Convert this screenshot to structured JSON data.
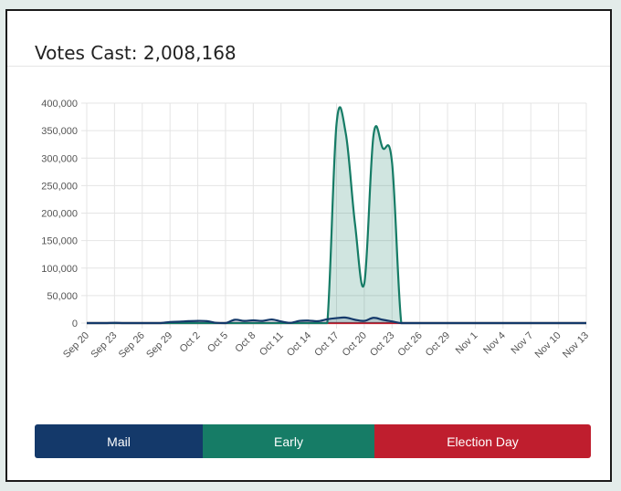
{
  "title": "Votes Cast: 2,008,168",
  "legend": [
    {
      "label": "Mail",
      "color": "#14396a"
    },
    {
      "label": "Early",
      "color": "#167c66"
    },
    {
      "label": "Election Day",
      "color": "#bf1e2e"
    }
  ],
  "chart_data": {
    "type": "area",
    "title": "Votes Cast: 2,008,168",
    "xlabel": "",
    "ylabel": "",
    "ylim": [
      0,
      400000
    ],
    "yticks": [
      0,
      50000,
      100000,
      150000,
      200000,
      250000,
      300000,
      350000,
      400000
    ],
    "ytick_labels": [
      "0",
      "50,000",
      "100,000",
      "150,000",
      "200,000",
      "250,000",
      "300,000",
      "350,000",
      "400,000"
    ],
    "x": [
      "Sep 20",
      "Sep 21",
      "Sep 22",
      "Sep 23",
      "Sep 24",
      "Sep 25",
      "Sep 26",
      "Sep 27",
      "Sep 28",
      "Sep 29",
      "Sep 30",
      "Oct 1",
      "Oct 2",
      "Oct 3",
      "Oct 4",
      "Oct 5",
      "Oct 6",
      "Oct 7",
      "Oct 8",
      "Oct 9",
      "Oct 10",
      "Oct 11",
      "Oct 12",
      "Oct 13",
      "Oct 14",
      "Oct 15",
      "Oct 16",
      "Oct 17",
      "Oct 18",
      "Oct 19",
      "Oct 20",
      "Oct 21",
      "Oct 22",
      "Oct 23",
      "Oct 24",
      "Oct 25",
      "Oct 26",
      "Oct 27",
      "Oct 28",
      "Oct 29",
      "Oct 30",
      "Oct 31",
      "Nov 1",
      "Nov 2",
      "Nov 3",
      "Nov 4",
      "Nov 5",
      "Nov 6",
      "Nov 7",
      "Nov 8",
      "Nov 9",
      "Nov 10",
      "Nov 11",
      "Nov 12",
      "Nov 13"
    ],
    "xtick_labels": [
      "Sep 20",
      "Sep 23",
      "Sep 26",
      "Sep 29",
      "Oct 2",
      "Oct 5",
      "Oct 8",
      "Oct 11",
      "Oct 14",
      "Oct 17",
      "Oct 20",
      "Oct 23",
      "Oct 26",
      "Oct 29",
      "Nov 1",
      "Nov 4",
      "Nov 7",
      "Nov 10",
      "Nov 13"
    ],
    "grid": true,
    "legend_position": "bottom",
    "series": [
      {
        "name": "Early",
        "color": "#167c66",
        "fill": "rgba(22,124,102,0.2)",
        "values": [
          0,
          0,
          0,
          0,
          0,
          0,
          0,
          0,
          0,
          0,
          0,
          0,
          0,
          0,
          0,
          0,
          0,
          0,
          0,
          0,
          0,
          0,
          0,
          0,
          0,
          0,
          0,
          362000,
          345000,
          180000,
          72000,
          342000,
          318000,
          292000,
          0,
          0,
          0,
          0,
          0,
          0,
          0,
          0,
          0,
          0,
          0,
          0,
          0,
          0,
          0,
          0,
          0,
          0,
          0,
          0,
          0
        ]
      },
      {
        "name": "Mail",
        "color": "#14396a",
        "fill": "rgba(20,57,106,0.15)",
        "values": [
          0,
          0,
          0,
          500,
          0,
          0,
          0,
          0,
          0,
          2000,
          2500,
          3500,
          4000,
          3500,
          500,
          0,
          6000,
          4000,
          5000,
          4000,
          6500,
          3000,
          500,
          4000,
          4500,
          3500,
          7000,
          9000,
          10000,
          6000,
          4000,
          9500,
          6000,
          3000,
          0,
          0,
          0,
          0,
          0,
          0,
          0,
          0,
          0,
          0,
          0,
          0,
          0,
          0,
          0,
          0,
          0,
          0,
          0,
          0,
          0
        ]
      },
      {
        "name": "Election Day",
        "color": "#bf1e2e",
        "fill": "rgba(191,30,46,0.15)",
        "values": [
          0,
          0,
          0,
          0,
          0,
          0,
          0,
          0,
          0,
          0,
          0,
          0,
          0,
          0,
          0,
          0,
          0,
          0,
          0,
          0,
          0,
          0,
          0,
          0,
          0,
          0,
          0,
          0,
          0,
          0,
          0,
          0,
          0,
          0,
          0,
          0,
          0,
          0,
          0,
          0,
          0,
          0,
          0,
          0,
          0,
          0,
          0,
          0,
          0,
          0,
          0,
          0,
          0,
          0,
          0
        ]
      }
    ]
  }
}
